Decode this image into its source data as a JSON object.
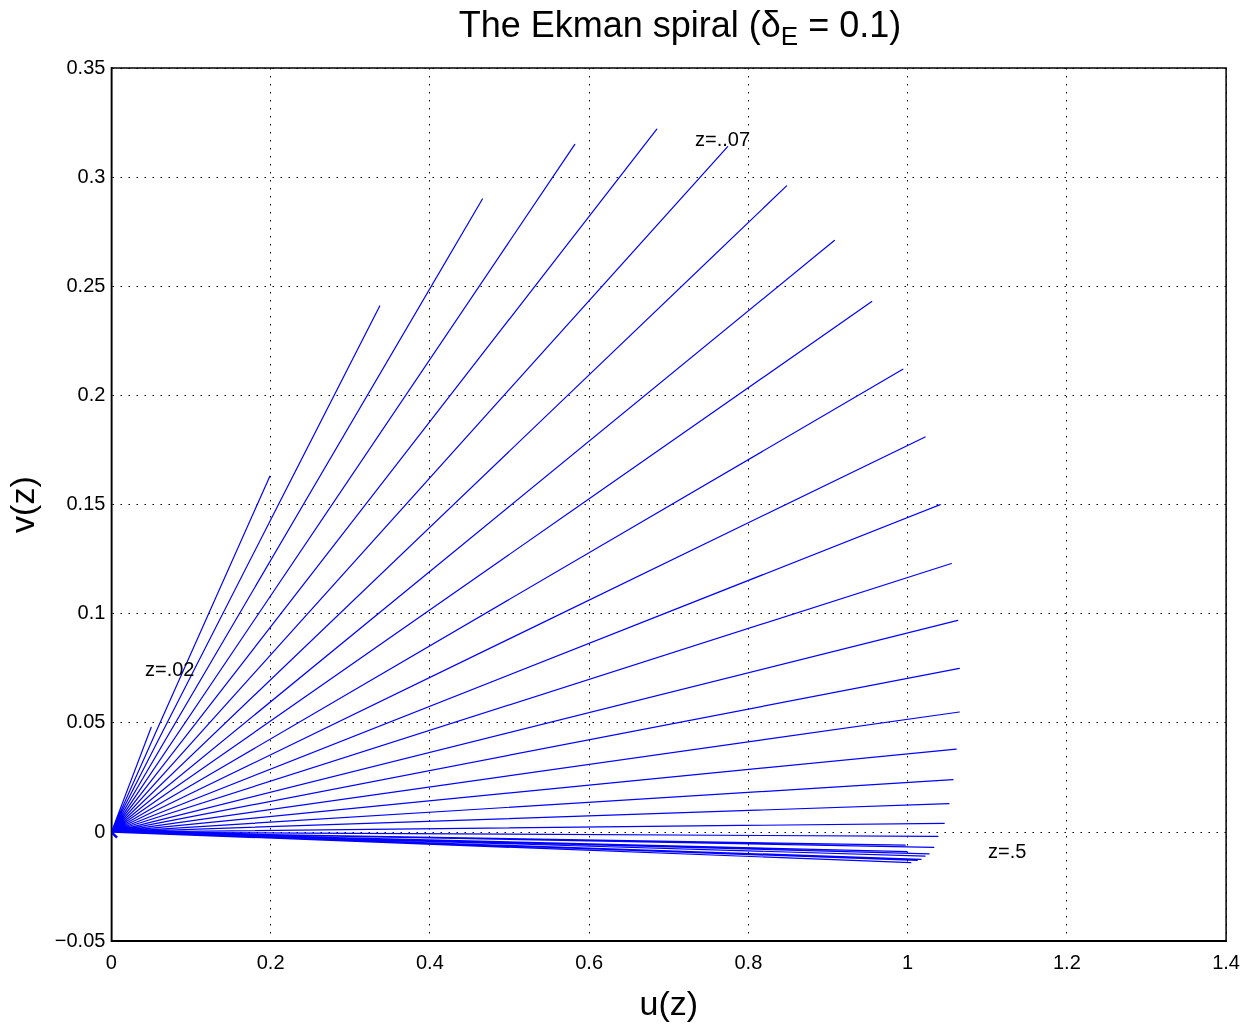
{
  "chart_data": {
    "type": "line",
    "title": "The Ekman spiral (δ$_{E}$ = 0.1)",
    "xlabel": "u(z)",
    "ylabel": "v(z)",
    "xlim": [
      0,
      1.4
    ],
    "xticks": [
      0,
      0.2,
      0.4,
      0.6,
      0.8,
      1,
      1.2,
      1.4
    ],
    "ylim": [
      -0.05,
      0.35
    ],
    "yticks": [
      -0.05,
      0,
      0.05,
      0.1,
      0.15,
      0.2,
      0.25,
      0.3,
      0.35
    ],
    "grid": true,
    "legend": false,
    "line_style": "solid",
    "series": [
      {
        "color": "#0000ff",
        "marker": "none",
        "x": [
          0,
          0.05,
          0,
          0.199,
          0,
          0.337,
          0,
          0.466,
          0,
          0.582,
          0,
          0.685,
          0,
          0.774,
          0,
          0.848,
          0,
          0.908,
          0,
          0.955,
          0,
          0.994,
          0,
          1.022,
          0,
          1.041,
          0,
          1.055,
          0,
          1.063,
          0,
          1.065,
          0,
          1.065,
          0,
          1.061,
          0,
          1.057,
          0,
          1.052,
          0,
          1.046,
          0,
          1.038,
          0,
          1.033,
          0,
          1.027,
          0,
          1.022,
          0,
          1.017,
          0,
          1.012,
          0,
          1.004,
          0,
          0.997,
          0,
          1.0
        ],
        "values": [
          0,
          0.048,
          0,
          0.163,
          0,
          0.241,
          0,
          0.29,
          0,
          0.315,
          0,
          0.322,
          0,
          0.314,
          0,
          0.296,
          0,
          0.271,
          0,
          0.243,
          0,
          0.212,
          0,
          0.181,
          0,
          0.15,
          0,
          0.123,
          0,
          0.097,
          0,
          0.075,
          0,
          0.055,
          0,
          0.038,
          0,
          0.024,
          0,
          0.013,
          0,
          0.004,
          0,
          -0.002,
          0,
          -0.007,
          0,
          -0.01,
          0,
          -0.011,
          0,
          -0.0125,
          0,
          -0.013,
          0,
          -0.014,
          0,
          -0.006,
          0,
          -0.009
        ]
      },
      {
        "type": "scatter",
        "color": "#0000ff",
        "marker": "cross",
        "x": [
          0
        ],
        "values": [
          0
        ]
      }
    ],
    "annotations": [
      "z=.02",
      "z=..07",
      "z=.5"
    ]
  }
}
